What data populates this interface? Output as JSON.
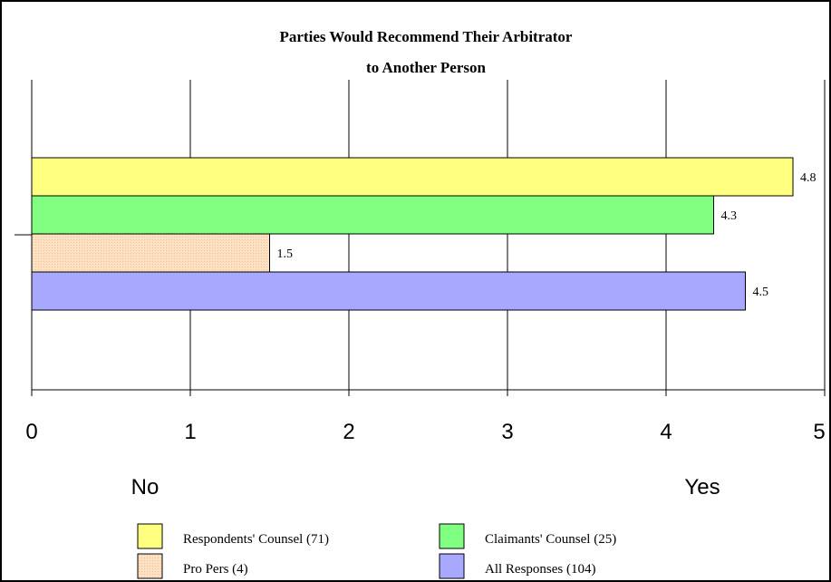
{
  "chart_data": {
    "type": "bar",
    "orientation": "horizontal",
    "title_lines": [
      "Parties Would Recommend Their Arbitrator",
      "to Another Person"
    ],
    "xlim": [
      0,
      5
    ],
    "x_ticks": [
      "0",
      "1",
      "2",
      "3",
      "4",
      "5"
    ],
    "scale_labels": {
      "low": "No",
      "high": "Yes"
    },
    "grid": true,
    "legend_position": "bottom",
    "series": [
      {
        "name": "Respondents' Counsel (71)",
        "value": 4.8,
        "label": "4.8",
        "color": "#ffff80"
      },
      {
        "name": "Claimants' Counsel (25)",
        "value": 4.3,
        "label": "4.3",
        "color": "#80ff80"
      },
      {
        "name": "Pro Pers (4)",
        "value": 1.5,
        "label": "1.5",
        "color": "#ffe0c0"
      },
      {
        "name": "All Responses (104)",
        "value": 4.5,
        "label": "4.5",
        "color": "#a8a8ff"
      }
    ],
    "legend_order": [
      0,
      1,
      2,
      3
    ]
  }
}
